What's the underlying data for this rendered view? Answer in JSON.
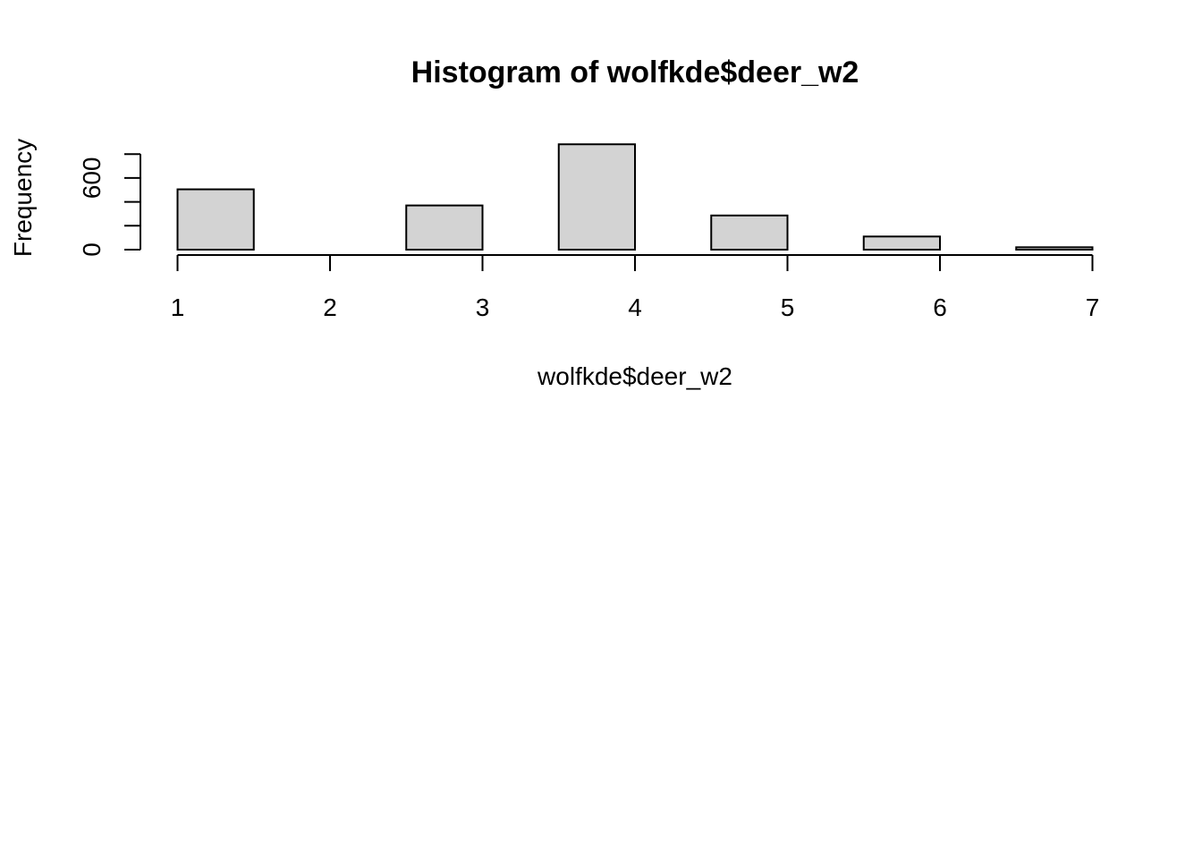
{
  "chart_data": {
    "type": "bar",
    "title": "Histogram of wolfkde$deer_w2",
    "xlabel": "wolfkde$deer_w2",
    "ylabel": "Frequency",
    "bins": [
      {
        "x0": 1.0,
        "x1": 1.5,
        "count": 505
      },
      {
        "x0": 1.5,
        "x1": 2.0,
        "count": 0
      },
      {
        "x0": 2.0,
        "x1": 2.5,
        "count": 0
      },
      {
        "x0": 2.5,
        "x1": 3.0,
        "count": 370
      },
      {
        "x0": 3.0,
        "x1": 3.5,
        "count": 0
      },
      {
        "x0": 3.5,
        "x1": 4.0,
        "count": 882
      },
      {
        "x0": 4.0,
        "x1": 4.5,
        "count": 0
      },
      {
        "x0": 4.5,
        "x1": 5.0,
        "count": 286
      },
      {
        "x0": 5.0,
        "x1": 5.5,
        "count": 0
      },
      {
        "x0": 5.5,
        "x1": 6.0,
        "count": 110
      },
      {
        "x0": 6.0,
        "x1": 6.5,
        "count": 0
      },
      {
        "x0": 6.5,
        "x1": 7.0,
        "count": 20
      }
    ],
    "x_ticks": [
      "1",
      "2",
      "3",
      "4",
      "5",
      "6",
      "7"
    ],
    "y_tick_labels": [
      "0",
      "600"
    ],
    "y_minor_ticks": [
      0,
      200,
      400,
      600,
      800
    ],
    "xlim": [
      1,
      7
    ],
    "ylim": [
      0,
      882
    ],
    "grid": false,
    "bar_fill": "#d3d3d3",
    "bar_stroke": "#000000"
  }
}
